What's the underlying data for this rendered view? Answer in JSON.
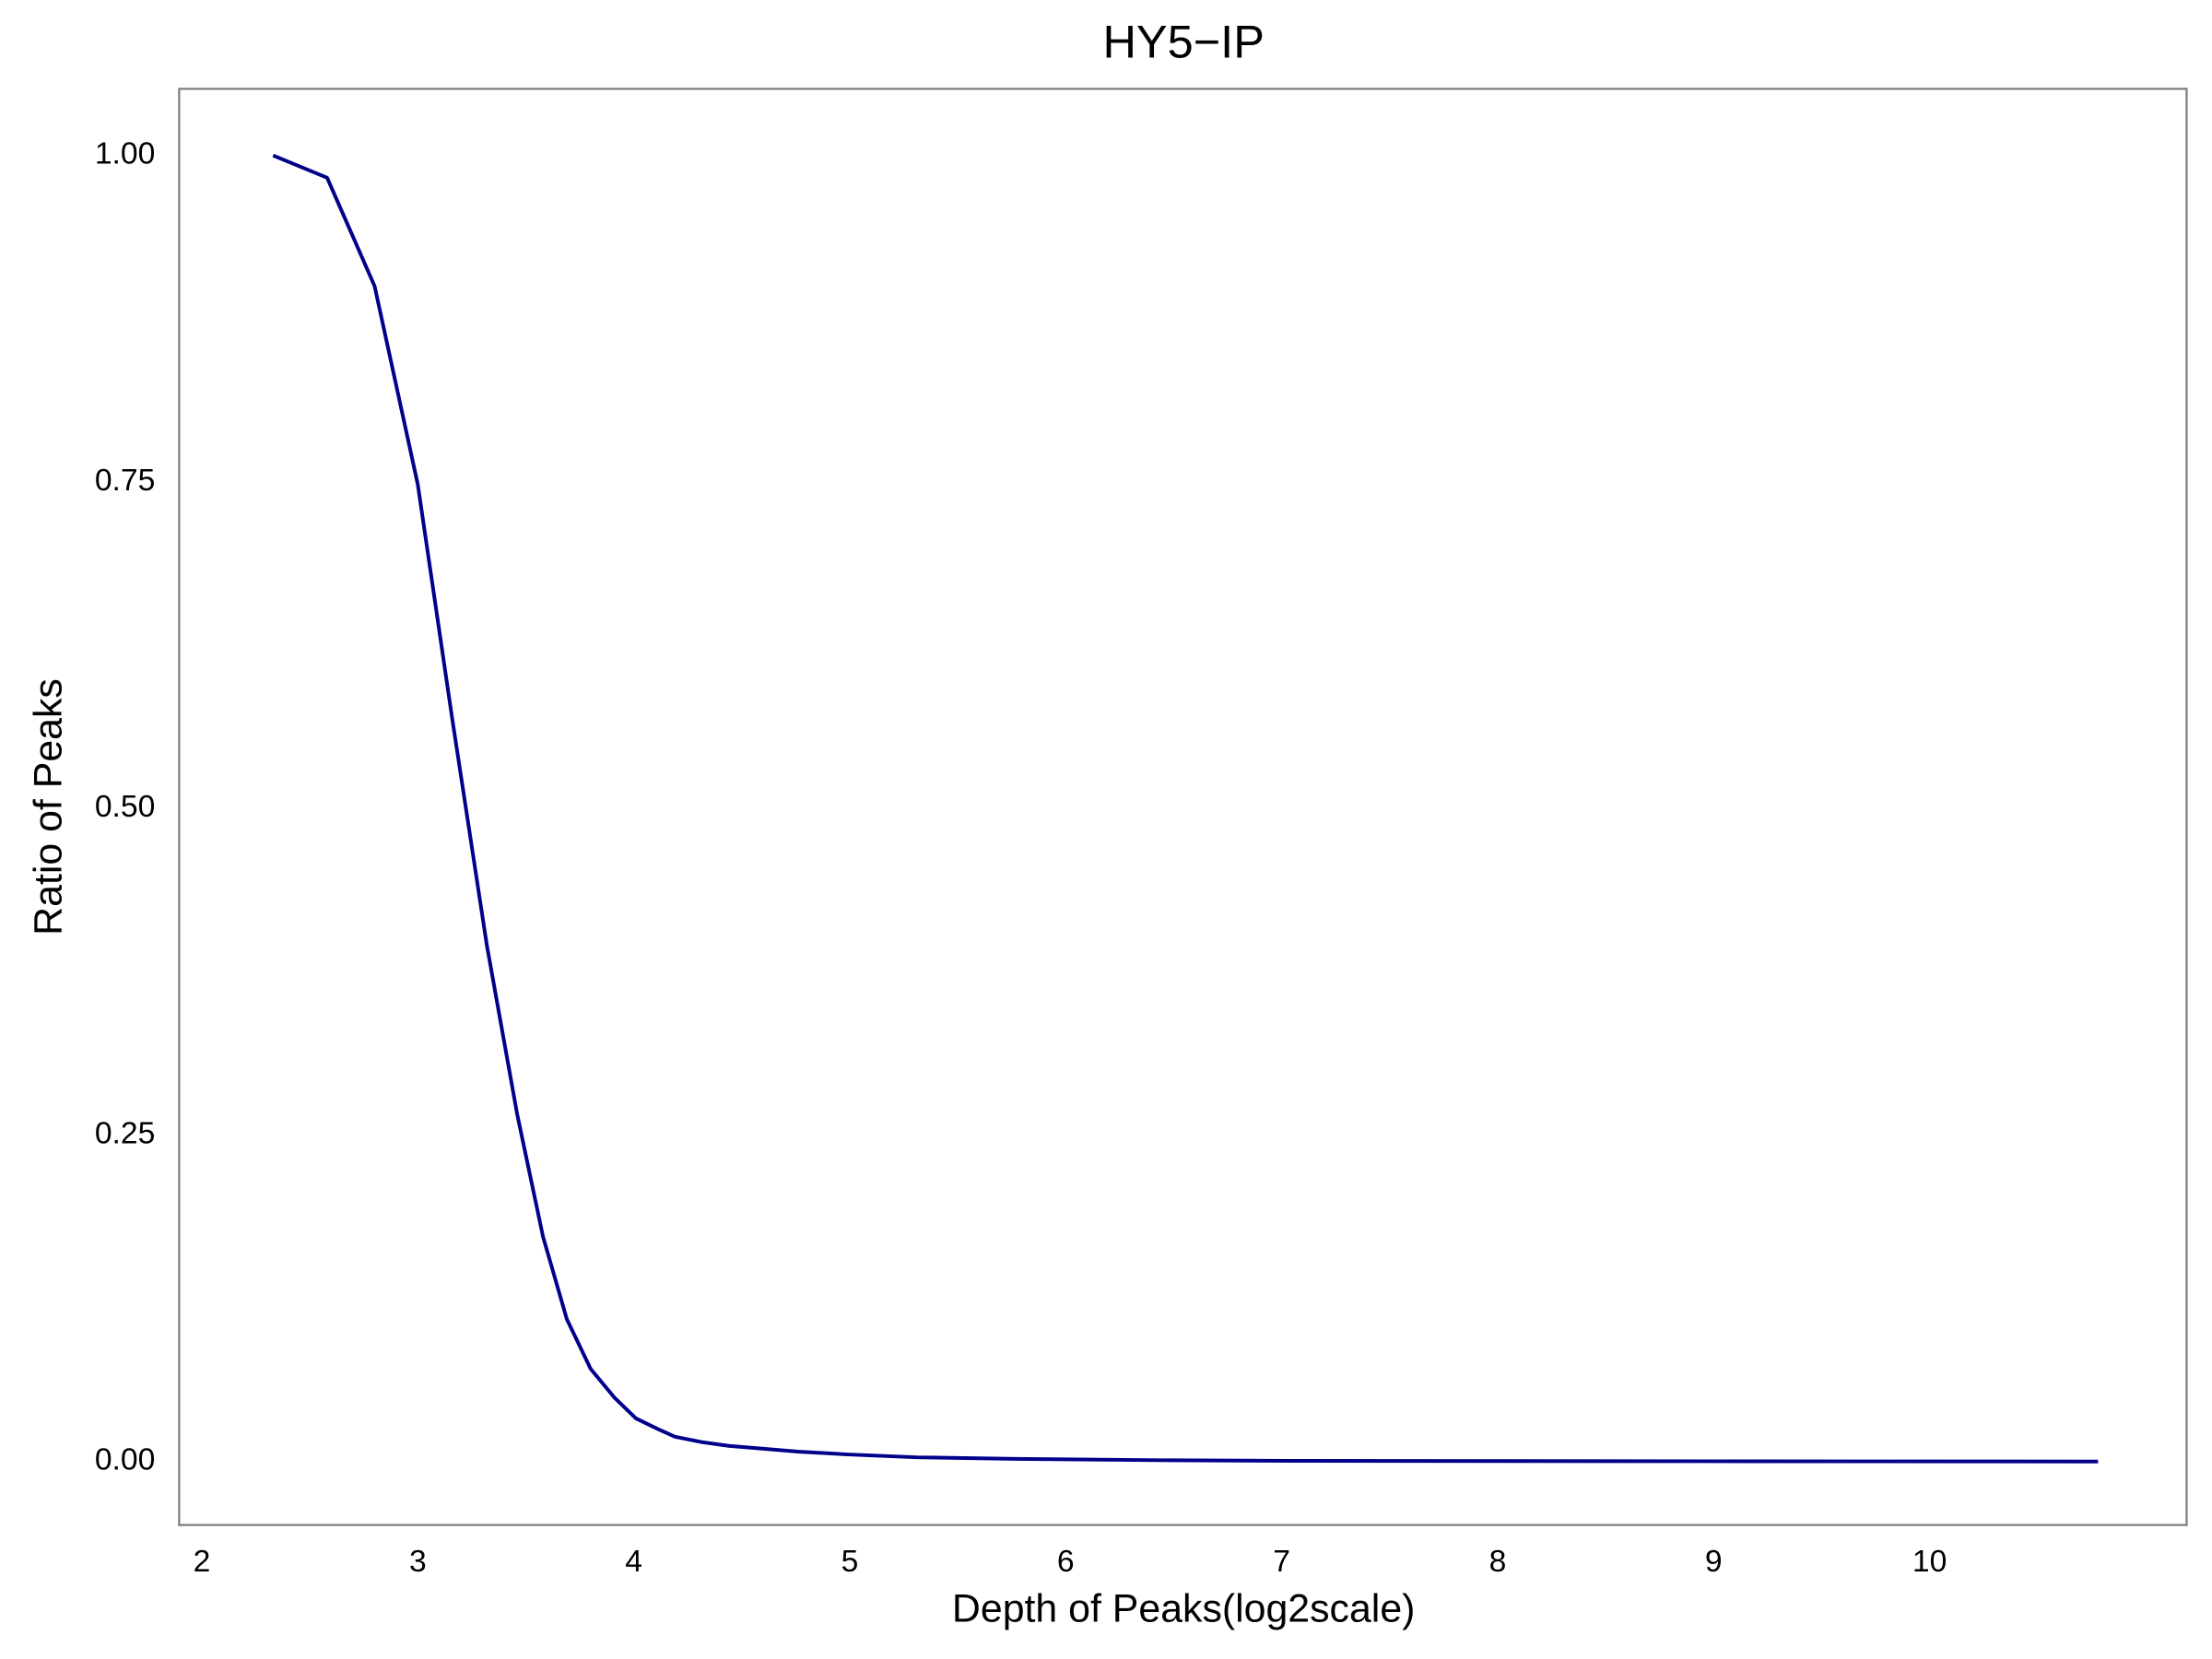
{
  "chart_data": {
    "type": "line",
    "title": "HY5−IP",
    "x_label": "Depth of Peaks(log2scale)",
    "y_label": "Ratio of Peaks",
    "x": [
      2.33,
      2.58,
      2.8,
      3.0,
      3.16,
      3.32,
      3.46,
      3.58,
      3.69,
      3.8,
      3.91,
      4.01,
      4.11,
      4.19,
      4.31,
      4.44,
      4.76,
      4.99,
      5.31,
      5.77,
      6.43,
      7.08,
      8.97,
      10.78
    ],
    "series": [
      {
        "name": "HY5−IP",
        "color": "#00008b",
        "values": [
          1.0,
          0.983,
          0.9,
          0.748,
          0.568,
          0.395,
          0.266,
          0.172,
          0.109,
          0.071,
          0.049,
          0.033,
          0.025,
          0.019,
          0.015,
          0.012,
          0.0076,
          0.0054,
          0.0032,
          0.002,
          0.001,
          0.0005,
          0.0002,
          0.0
        ]
      }
    ],
    "xlim": [
      1.895,
      11.19
    ],
    "ylim": [
      -0.0486,
      1.051
    ],
    "xticks": [
      2,
      3,
      4,
      5,
      6,
      7,
      8,
      9,
      10
    ],
    "yticks": [
      {
        "value": 0,
        "label": "0.00"
      },
      {
        "value": 0.25,
        "label": "0.25"
      },
      {
        "value": 0.5,
        "label": "0.50"
      },
      {
        "value": 0.75,
        "label": "0.75"
      },
      {
        "value": 1,
        "label": "1.00"
      }
    ],
    "grid": false
  }
}
